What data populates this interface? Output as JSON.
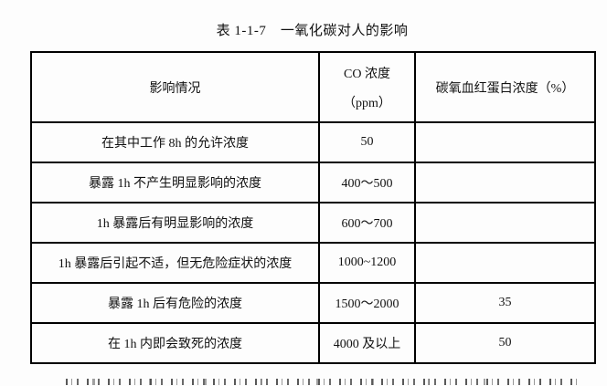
{
  "document": {
    "title": "表 1-1-7　一氧化碳对人的影响"
  },
  "table": {
    "header": {
      "effect": "影响情况",
      "co_line1": "CO 浓度",
      "co_line2": "（ppm）",
      "cohb": "碳氧血红蛋白浓度（%）"
    },
    "rows": [
      {
        "effect": "在其中工作 8h 的允许浓度",
        "co": "50",
        "cohb": ""
      },
      {
        "effect": "暴露 1h 不产生明显影响的浓度",
        "co": "400～500",
        "cohb": ""
      },
      {
        "effect": "1h 暴露后有明显影响的浓度",
        "co": "600～700",
        "cohb": ""
      },
      {
        "effect": "1h 暴露后引起不适，但无危险症状的浓度",
        "co": "1000~1200",
        "cohb": ""
      },
      {
        "effect": "暴露 1h 后有危险的浓度",
        "co": "1500～2000",
        "cohb": "35"
      },
      {
        "effect": "在 1h 内即会致死的浓度",
        "co": "4000 及以上",
        "cohb": "50"
      }
    ]
  }
}
